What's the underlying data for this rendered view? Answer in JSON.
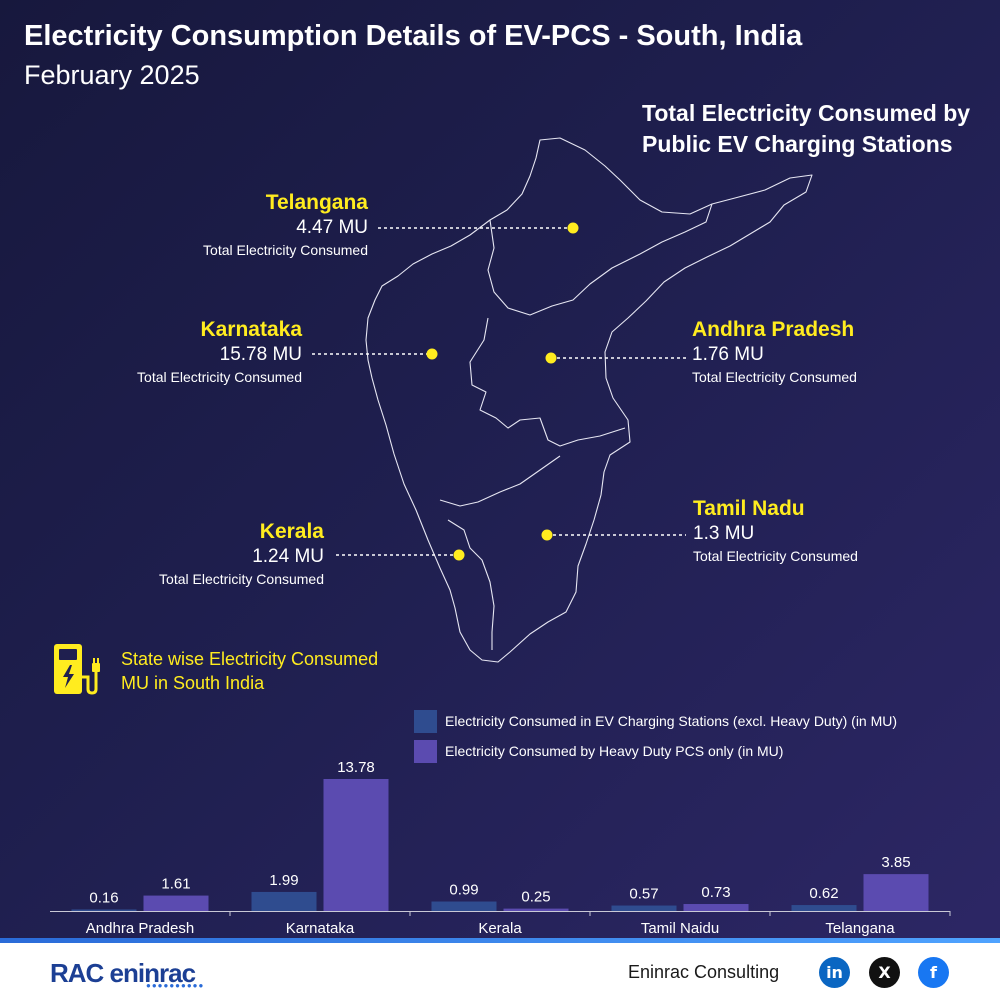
{
  "header": {
    "title": "Electricity Consumption Details of EV-PCS - South, India",
    "subtitle": "February 2025"
  },
  "map": {
    "heading": "Total Electricity Consumed by Public EV Charging Stations",
    "callouts": [
      {
        "state": "Telangana",
        "value": "4.47 MU",
        "caption": "Total Electricity Consumed"
      },
      {
        "state": "Karnataka",
        "value": "15.78 MU",
        "caption": "Total Electricity Consumed"
      },
      {
        "state": "Andhra Pradesh",
        "value": "1.76 MU",
        "caption": "Total Electricity Consumed"
      },
      {
        "state": "Tamil Nadu",
        "value": "1.3 MU",
        "caption": "Total Electricity Consumed"
      },
      {
        "state": "Kerala",
        "value": "1.24 MU",
        "caption": "Total Electricity Consumed"
      }
    ],
    "dot_color": "#ffec1f"
  },
  "chart_heading": "State wise Electricity Consumed MU in South India",
  "icons": {
    "chart_icon": "ev-charger-icon",
    "social": [
      "linkedin-icon",
      "x-icon",
      "facebook-icon"
    ]
  },
  "chart_data": {
    "type": "bar",
    "categories": [
      "Andhra Pradesh",
      "Karnataka",
      "Kerala",
      "Tamil Naidu",
      "Telangana"
    ],
    "series": [
      {
        "name": "Electricity Consumed in EV Charging Stations (excl. Heavy Duty) (in MU)",
        "values": [
          0.16,
          1.99,
          0.99,
          0.57,
          0.62
        ],
        "color": "#2f4c8f"
      },
      {
        "name": "Electricity Consumed by Heavy Duty PCS only (in MU)",
        "values": [
          1.61,
          13.78,
          0.25,
          0.73,
          3.85
        ],
        "color": "#5b4bb0"
      }
    ],
    "ylim": [
      0,
      13.78
    ],
    "grid": false,
    "legend": "top-right"
  },
  "footer": {
    "logo": "RAC eninrac",
    "logo_dots": "●●●●●●●●●●",
    "brand": "Eninrac Consulting",
    "social": [
      "in",
      "X",
      "f"
    ]
  },
  "colors": {
    "accent_yellow": "#ffec1f",
    "series1": "#2f4c8f",
    "series2": "#5b4bb0",
    "linkedin": "#0a66c2",
    "x": "#111111",
    "facebook": "#1877f2"
  }
}
